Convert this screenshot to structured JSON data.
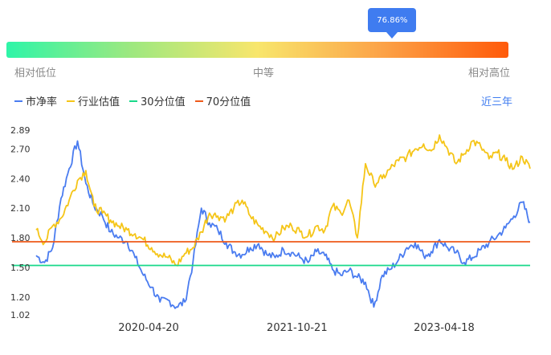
{
  "percentile_badge": "76.86%",
  "percentile_value": 76.86,
  "scale": {
    "low": "相对低位",
    "mid": "中等",
    "high": "相对高位"
  },
  "legend": [
    {
      "label": "市净率",
      "color": "#4a7cf0"
    },
    {
      "label": "行业估值",
      "color": "#f5c518"
    },
    {
      "label": "30分位值",
      "color": "#19d98a"
    },
    {
      "label": "70分位值",
      "color": "#ee5a1a"
    }
  ],
  "period": "近三年",
  "chart_data": {
    "type": "line",
    "yticks": [
      {
        "value": 2.89,
        "label": "2.89"
      },
      {
        "value": 2.7,
        "label": "2.70"
      },
      {
        "value": 2.4,
        "label": "2.40"
      },
      {
        "value": 2.1,
        "label": "2.10"
      },
      {
        "value": 1.8,
        "label": "1.80"
      },
      {
        "value": 1.5,
        "label": "1.50"
      },
      {
        "value": 1.2,
        "label": "1.20"
      },
      {
        "value": 1.02,
        "label": "1.02"
      }
    ],
    "ylim": [
      1.02,
      2.89
    ],
    "xlim": [
      "2019-03-01",
      "2024-03-01"
    ],
    "xticks": [
      "2020-04-20",
      "2021-10-21",
      "2023-04-18"
    ],
    "grid": false,
    "legend_position": "top-left",
    "thresholds": [
      {
        "name": "30分位值",
        "value": 1.52,
        "color": "#19d98a"
      },
      {
        "name": "70分位值",
        "value": 1.76,
        "color": "#ee5a1a"
      }
    ],
    "series": [
      {
        "name": "市净率",
        "color": "#4a7cf0",
        "x": [
          "2019-03-01",
          "2019-04-01",
          "2019-05-01",
          "2019-06-01",
          "2019-07-01",
          "2019-08-01",
          "2019-09-01",
          "2019-10-01",
          "2019-11-01",
          "2019-12-01",
          "2020-01-01",
          "2020-02-01",
          "2020-03-01",
          "2020-04-01",
          "2020-05-01",
          "2020-06-01",
          "2020-07-01",
          "2020-08-01",
          "2020-09-01",
          "2020-10-01",
          "2020-11-01",
          "2020-12-01",
          "2021-01-01",
          "2021-02-01",
          "2021-03-01",
          "2021-04-01",
          "2021-05-01",
          "2021-06-01",
          "2021-07-01",
          "2021-08-01",
          "2021-09-01",
          "2021-10-01",
          "2021-11-01",
          "2021-12-01",
          "2022-01-01",
          "2022-02-01",
          "2022-03-01",
          "2022-04-01",
          "2022-05-01",
          "2022-06-01",
          "2022-07-01",
          "2022-08-01",
          "2022-09-01",
          "2022-10-01",
          "2022-11-01",
          "2022-12-01",
          "2023-01-01",
          "2023-02-01",
          "2023-03-01",
          "2023-04-01",
          "2023-05-01",
          "2023-06-01",
          "2023-07-01",
          "2023-08-01",
          "2023-09-01",
          "2023-10-01",
          "2023-11-01",
          "2023-12-01",
          "2024-01-01",
          "2024-02-01",
          "2024-03-01"
        ],
        "values": [
          1.62,
          1.55,
          1.7,
          2.2,
          2.5,
          2.78,
          2.35,
          2.12,
          2.02,
          1.86,
          1.8,
          1.76,
          1.6,
          1.42,
          1.3,
          1.15,
          1.17,
          1.1,
          1.15,
          1.55,
          2.1,
          1.95,
          1.88,
          1.75,
          1.66,
          1.63,
          1.7,
          1.74,
          1.63,
          1.6,
          1.68,
          1.65,
          1.6,
          1.55,
          1.66,
          1.62,
          1.48,
          1.42,
          1.47,
          1.4,
          1.35,
          1.1,
          1.42,
          1.48,
          1.58,
          1.7,
          1.75,
          1.62,
          1.66,
          1.78,
          1.7,
          1.65,
          1.55,
          1.6,
          1.68,
          1.75,
          1.82,
          1.9,
          2.02,
          2.16,
          1.96
        ]
      },
      {
        "name": "行业估值",
        "color": "#f5c518",
        "x": [
          "2019-03-01",
          "2019-04-01",
          "2019-05-01",
          "2019-06-01",
          "2019-07-01",
          "2019-08-01",
          "2019-09-01",
          "2019-10-01",
          "2019-11-01",
          "2019-12-01",
          "2020-01-01",
          "2020-02-01",
          "2020-03-01",
          "2020-04-01",
          "2020-05-01",
          "2020-06-01",
          "2020-07-01",
          "2020-08-01",
          "2020-09-01",
          "2020-10-01",
          "2020-11-01",
          "2020-12-01",
          "2021-01-01",
          "2021-02-01",
          "2021-03-01",
          "2021-04-01",
          "2021-05-01",
          "2021-06-01",
          "2021-07-01",
          "2021-08-01",
          "2021-09-01",
          "2021-10-01",
          "2021-11-01",
          "2021-12-01",
          "2022-01-01",
          "2022-02-01",
          "2022-03-01",
          "2022-04-01",
          "2022-05-01",
          "2022-06-01",
          "2022-07-01",
          "2022-08-01",
          "2022-09-01",
          "2022-10-01",
          "2022-11-01",
          "2022-12-01",
          "2023-01-01",
          "2023-02-01",
          "2023-03-01",
          "2023-04-01",
          "2023-05-01",
          "2023-06-01",
          "2023-07-01",
          "2023-08-01",
          "2023-09-01",
          "2023-10-01",
          "2023-11-01",
          "2023-12-01",
          "2024-01-01",
          "2024-02-01",
          "2024-03-01"
        ],
        "values": [
          1.88,
          1.75,
          1.92,
          2.0,
          2.18,
          2.38,
          2.48,
          2.12,
          2.05,
          1.98,
          1.92,
          1.88,
          1.84,
          1.78,
          1.7,
          1.63,
          1.6,
          1.52,
          1.64,
          1.7,
          1.86,
          2.05,
          2.02,
          2.0,
          2.1,
          2.18,
          2.02,
          1.92,
          1.86,
          1.8,
          1.9,
          1.92,
          1.86,
          1.82,
          1.92,
          1.88,
          2.12,
          2.05,
          2.18,
          1.8,
          2.55,
          2.35,
          2.4,
          2.5,
          2.58,
          2.62,
          2.7,
          2.75,
          2.68,
          2.84,
          2.7,
          2.55,
          2.65,
          2.78,
          2.72,
          2.6,
          2.66,
          2.58,
          2.5,
          2.62,
          2.5
        ]
      }
    ]
  }
}
